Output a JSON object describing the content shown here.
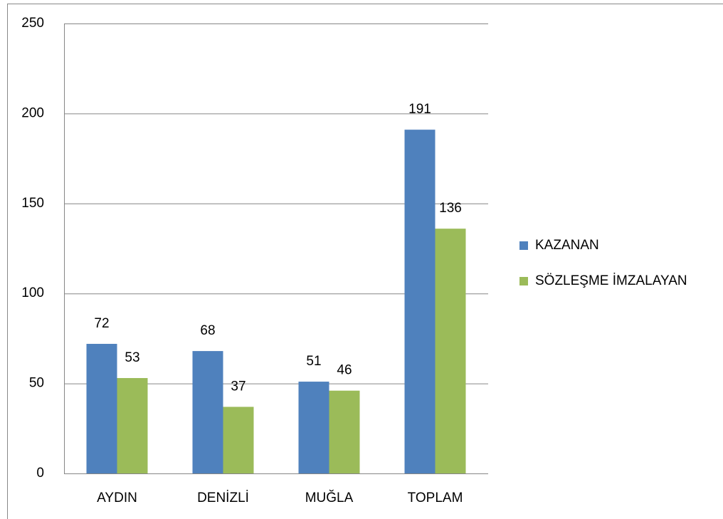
{
  "chart_data": {
    "type": "bar",
    "categories": [
      "AYDIN",
      "DENİZLİ",
      "MUĞLA",
      "TOPLAM"
    ],
    "series": [
      {
        "name": "KAZANAN",
        "color": "#4f81bd",
        "values": [
          72,
          68,
          51,
          191
        ]
      },
      {
        "name": "SÖZLEŞME İMZALAYAN",
        "color": "#9bbb59",
        "values": [
          53,
          37,
          46,
          136
        ]
      }
    ],
    "ylim": [
      0,
      250
    ],
    "yticks": [
      0,
      50,
      100,
      150,
      200,
      250
    ],
    "grid": true,
    "legend": "right"
  }
}
